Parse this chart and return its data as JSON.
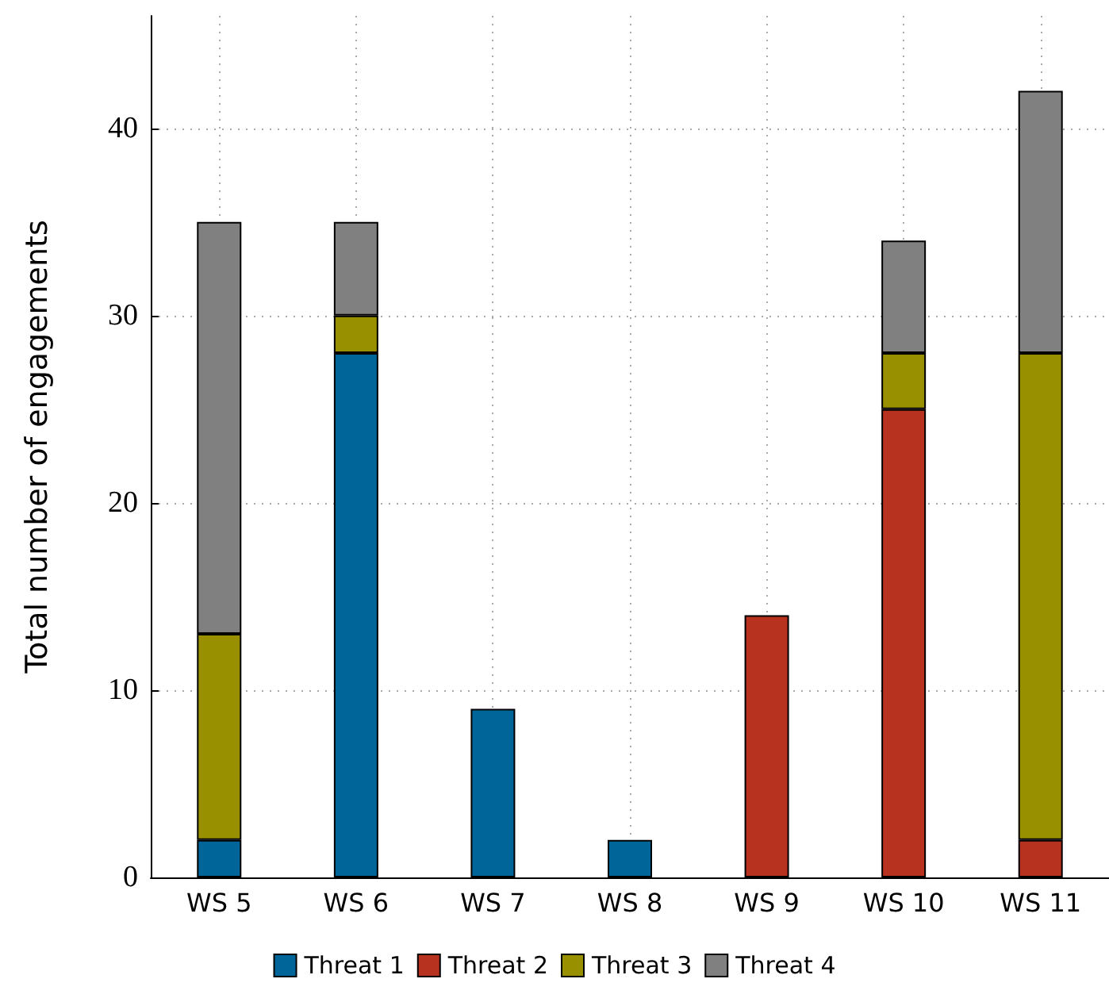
{
  "chart_data": {
    "type": "bar",
    "stacked": true,
    "ylabel": "Total number of engagements",
    "categories": [
      "WS 5",
      "WS 6",
      "WS 7",
      "WS 8",
      "WS 9",
      "WS 10",
      "WS 11"
    ],
    "series": [
      {
        "name": "Threat 1",
        "color": "#006699",
        "values": [
          2,
          28,
          9,
          2,
          0,
          0,
          0
        ]
      },
      {
        "name": "Threat 2",
        "color": "#b83220",
        "values": [
          0,
          0,
          0,
          0,
          14,
          25,
          2
        ]
      },
      {
        "name": "Threat 3",
        "color": "#999000",
        "values": [
          11,
          2,
          0,
          0,
          0,
          3,
          26
        ]
      },
      {
        "name": "Threat 4",
        "color": "#808080",
        "values": [
          22,
          5,
          0,
          0,
          0,
          6,
          14
        ]
      }
    ],
    "ylim": [
      0,
      46
    ],
    "yticks": [
      0,
      10,
      20,
      30,
      40
    ],
    "grid": true,
    "legend": "bottom"
  }
}
